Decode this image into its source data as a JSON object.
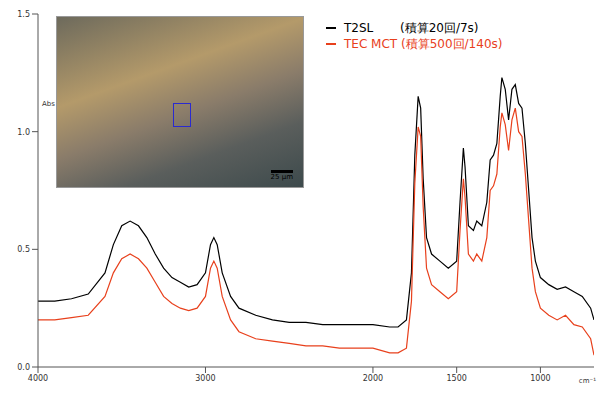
{
  "chart_data": {
    "type": "line",
    "ylabel": "Abs",
    "xlabel": "cm⁻¹",
    "legend": "top-right",
    "grid": false,
    "annotations": [
      "25 µm"
    ],
    "x": [
      4000,
      3900,
      3800,
      3700,
      3600,
      3550,
      3500,
      3450,
      3400,
      3350,
      3300,
      3250,
      3200,
      3150,
      3100,
      3050,
      3000,
      2970,
      2950,
      2930,
      2900,
      2850,
      2800,
      2700,
      2600,
      2500,
      2400,
      2300,
      2200,
      2100,
      2000,
      1900,
      1850,
      1800,
      1770,
      1750,
      1730,
      1715,
      1700,
      1680,
      1650,
      1600,
      1550,
      1500,
      1480,
      1460,
      1450,
      1430,
      1400,
      1380,
      1350,
      1320,
      1300,
      1280,
      1260,
      1240,
      1230,
      1210,
      1190,
      1170,
      1150,
      1130,
      1110,
      1090,
      1070,
      1050,
      1030,
      1000,
      950,
      900,
      850,
      800,
      750,
      700,
      680
    ],
    "series": [
      {
        "name": "T2SL       (積算20回/7s)",
        "color": "#000000",
        "values": [
          0.28,
          0.28,
          0.29,
          0.31,
          0.4,
          0.52,
          0.6,
          0.62,
          0.6,
          0.55,
          0.48,
          0.42,
          0.38,
          0.36,
          0.34,
          0.35,
          0.4,
          0.52,
          0.55,
          0.52,
          0.4,
          0.3,
          0.25,
          0.22,
          0.2,
          0.19,
          0.19,
          0.18,
          0.18,
          0.18,
          0.18,
          0.17,
          0.17,
          0.2,
          0.4,
          0.9,
          1.15,
          1.1,
          0.8,
          0.55,
          0.48,
          0.45,
          0.42,
          0.45,
          0.7,
          0.93,
          0.85,
          0.6,
          0.58,
          0.62,
          0.6,
          0.7,
          0.88,
          0.9,
          0.95,
          1.15,
          1.23,
          1.18,
          1.05,
          1.18,
          1.2,
          1.12,
          1.1,
          0.95,
          0.75,
          0.55,
          0.45,
          0.38,
          0.35,
          0.33,
          0.34,
          0.32,
          0.3,
          0.25,
          0.2
        ]
      },
      {
        "name": "TEC MCT (積算500回/140s)",
        "color": "#e8401c",
        "values": [
          0.2,
          0.2,
          0.21,
          0.22,
          0.3,
          0.4,
          0.46,
          0.48,
          0.46,
          0.42,
          0.36,
          0.3,
          0.27,
          0.25,
          0.24,
          0.25,
          0.3,
          0.42,
          0.45,
          0.42,
          0.3,
          0.2,
          0.15,
          0.12,
          0.11,
          0.1,
          0.09,
          0.09,
          0.08,
          0.08,
          0.08,
          0.06,
          0.06,
          0.08,
          0.28,
          0.78,
          1.02,
          0.98,
          0.68,
          0.42,
          0.35,
          0.32,
          0.29,
          0.32,
          0.58,
          0.8,
          0.72,
          0.48,
          0.45,
          0.48,
          0.45,
          0.55,
          0.75,
          0.77,
          0.82,
          1.02,
          1.08,
          1.03,
          0.92,
          1.05,
          1.1,
          1.0,
          0.98,
          0.82,
          0.62,
          0.42,
          0.32,
          0.25,
          0.22,
          0.2,
          0.22,
          0.18,
          0.17,
          0.12,
          0.05
        ]
      }
    ],
    "xlim": [
      4000,
      680
    ],
    "xticks": [
      4000,
      3000,
      2000,
      1500,
      1000
    ],
    "ylim": [
      0,
      1.5
    ],
    "yticks": [
      {
        "value": 0,
        "label": "0.0"
      },
      {
        "value": 0.5,
        "label": "0.5"
      },
      {
        "value": 1,
        "label": "1.0"
      },
      {
        "value": 1.5,
        "label": "1.5"
      }
    ]
  }
}
